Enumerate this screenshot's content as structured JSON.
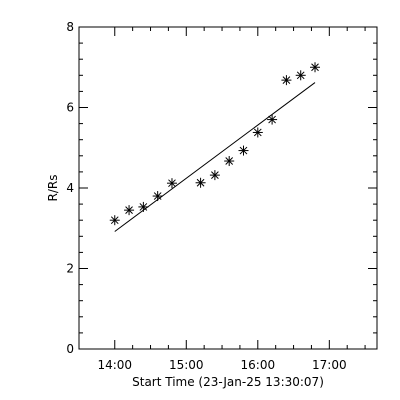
{
  "chart_data": {
    "type": "scatter",
    "title": "",
    "xlabel": "Start Time (23-Jan-25 13:30:07)",
    "ylabel": "R/Rs",
    "xlim": [
      "13:30",
      "17:40"
    ],
    "ylim": [
      0,
      8
    ],
    "grid": false,
    "x_ticks": [
      {
        "time": "14:00",
        "label": "14:00",
        "major": true
      },
      {
        "time": "14:15",
        "major": false
      },
      {
        "time": "14:30",
        "major": false
      },
      {
        "time": "14:45",
        "major": false
      },
      {
        "time": "15:00",
        "label": "15:00",
        "major": true
      },
      {
        "time": "15:15",
        "major": false
      },
      {
        "time": "15:30",
        "major": false
      },
      {
        "time": "15:45",
        "major": false
      },
      {
        "time": "16:00",
        "label": "16:00",
        "major": true
      },
      {
        "time": "16:15",
        "major": false
      },
      {
        "time": "16:30",
        "major": false
      },
      {
        "time": "16:45",
        "major": false
      },
      {
        "time": "17:00",
        "label": "17:00",
        "major": true
      },
      {
        "time": "17:15",
        "major": false
      },
      {
        "time": "17:30",
        "major": false
      }
    ],
    "y_ticks": [
      {
        "value": 0,
        "label": "0",
        "major": true
      },
      {
        "value": 0.4,
        "major": false
      },
      {
        "value": 0.8,
        "major": false
      },
      {
        "value": 1.2,
        "major": false
      },
      {
        "value": 1.6,
        "major": false
      },
      {
        "value": 2,
        "label": "2",
        "major": true
      },
      {
        "value": 2.4,
        "major": false
      },
      {
        "value": 2.8,
        "major": false
      },
      {
        "value": 3.2,
        "major": false
      },
      {
        "value": 3.6,
        "major": false
      },
      {
        "value": 4,
        "label": "4",
        "major": true
      },
      {
        "value": 4.4,
        "major": false
      },
      {
        "value": 4.8,
        "major": false
      },
      {
        "value": 5.2,
        "major": false
      },
      {
        "value": 5.6,
        "major": false
      },
      {
        "value": 6,
        "label": "6",
        "major": true
      },
      {
        "value": 6.4,
        "major": false
      },
      {
        "value": 6.8,
        "major": false
      },
      {
        "value": 7.2,
        "major": false
      },
      {
        "value": 7.6,
        "major": false
      },
      {
        "value": 8,
        "label": "8",
        "major": true
      }
    ],
    "series": [
      {
        "marker": "asterisk",
        "points": [
          {
            "x": "14:00",
            "y": 3.2
          },
          {
            "x": "14:12",
            "y": 3.45
          },
          {
            "x": "14:24",
            "y": 3.53
          },
          {
            "x": "14:36",
            "y": 3.8
          },
          {
            "x": "14:48",
            "y": 4.12
          },
          {
            "x": "15:12",
            "y": 4.13
          },
          {
            "x": "15:24",
            "y": 4.32
          },
          {
            "x": "15:36",
            "y": 4.67
          },
          {
            "x": "15:48",
            "y": 4.93
          },
          {
            "x": "16:00",
            "y": 5.38
          },
          {
            "x": "16:12",
            "y": 5.7
          },
          {
            "x": "16:24",
            "y": 6.68
          },
          {
            "x": "16:36",
            "y": 6.8
          },
          {
            "x": "16:48",
            "y": 7.0
          }
        ]
      },
      {
        "type": "line",
        "points": [
          {
            "x": "14:00",
            "y": 2.92
          },
          {
            "x": "16:48",
            "y": 6.62
          }
        ]
      }
    ],
    "colors": {
      "axes": "#000000",
      "markers": "#000000",
      "line": "#000000",
      "background": "#ffffff"
    }
  }
}
